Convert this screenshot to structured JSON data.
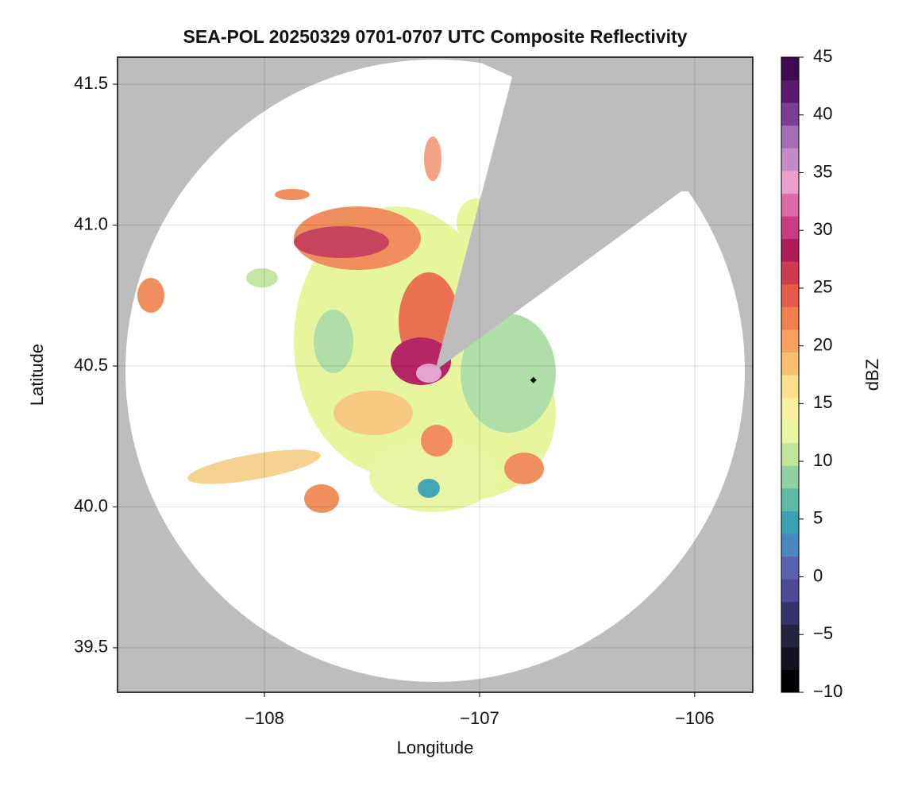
{
  "chart_data": {
    "type": "radar-map",
    "title": "SEA-POL 20250329 0701-0707 UTC Composite Reflectivity",
    "xlabel": "Longitude",
    "ylabel": "Latitude",
    "xlim": [
      -108.683,
      -105.73
    ],
    "ylim": [
      39.342,
      41.596
    ],
    "xticks": [
      {
        "value": -108,
        "label": "−108"
      },
      {
        "value": -107,
        "label": "−107"
      },
      {
        "value": -106,
        "label": "−106"
      }
    ],
    "yticks": [
      39.5,
      {
        "value": 40.0,
        "label": "40.0"
      },
      40.5,
      {
        "value": 41.0,
        "label": "41.0"
      },
      41.5
    ],
    "grid": true,
    "points": {
      "x": [
        -106.75
      ],
      "y": [
        40.45
      ],
      "color": "#000000"
    },
    "colorbar": {
      "label": "dBZ",
      "lim": [
        -10,
        45
      ],
      "ticks": [
        {
          "value": -10,
          "label": "−10"
        },
        {
          "value": -5,
          "label": "−5"
        },
        0,
        5,
        10,
        15,
        20,
        25,
        30,
        35,
        40,
        45
      ],
      "colors": [
        "#000004",
        "#121222",
        "#23223f",
        "#35336a",
        "#4a4a95",
        "#5a62b0",
        "#4a86c0",
        "#3aa2b2",
        "#5dbaa5",
        "#8fd0a4",
        "#c0e69e",
        "#e9f6a2",
        "#f8f0a0",
        "#fde08b",
        "#fbc06e",
        "#f8a05e",
        "#f27f4e",
        "#e65c4a",
        "#cf3a4f",
        "#b01c58",
        "#c83c84",
        "#de6aa8",
        "#eba0cc",
        "#c48bc6",
        "#a46eb4",
        "#7c3e92",
        "#5a1a6c",
        "#3f0b4e"
      ]
    }
  }
}
